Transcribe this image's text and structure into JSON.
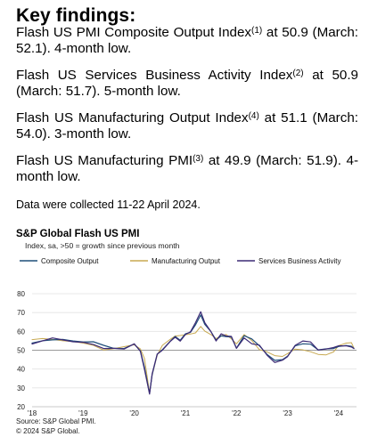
{
  "findings": {
    "heading": "Key findings:",
    "items": [
      {
        "pre": "Flash US PMI Composite Output Index",
        "sup": "(1)",
        "post": " at 50.9 (March: 52.1). 4-month low."
      },
      {
        "pre": "Flash US Services Business Activity Index",
        "sup": "(2)",
        "post": " at 50.9 (March: 51.7). 5-month low."
      },
      {
        "pre": "Flash US Manufacturing Output Index",
        "sup": "(4)",
        "post": " at 51.1 (March: 54.0). 3-month low."
      },
      {
        "pre": "Flash US Manufacturing PMI",
        "sup": "(3)",
        "post": " at 49.9 (March: 51.9). 4-month low."
      }
    ],
    "collected": "Data were collected 11-22 April 2024."
  },
  "chart_data": {
    "type": "line",
    "title": "S&P Global Flash US PMI",
    "subtitle": "Index, sa, >50 = growth since previous month",
    "source": "Source: S&P Global PMI.",
    "copyright": "© 2024 S&P Global.",
    "ylim": [
      20,
      80
    ],
    "yticks": [
      20,
      30,
      40,
      50,
      60,
      70,
      80
    ],
    "xlim": [
      2018.0,
      2024.35
    ],
    "xticks": [
      {
        "x": 2018.0,
        "label": "'18"
      },
      {
        "x": 2019.0,
        "label": "'19"
      },
      {
        "x": 2020.0,
        "label": "'20"
      },
      {
        "x": 2021.0,
        "label": "'21"
      },
      {
        "x": 2022.0,
        "label": "'22"
      },
      {
        "x": 2023.0,
        "label": "'23"
      },
      {
        "x": 2024.0,
        "label": "'24"
      }
    ],
    "reference_line": 50,
    "grid": "horizontal",
    "legend_position": "top",
    "series": [
      {
        "name": "Composite Output",
        "color": "#1f4e79",
        "width": 1.2,
        "points": [
          [
            2018.0,
            53.8
          ],
          [
            2018.2,
            55.0
          ],
          [
            2018.4,
            55.5
          ],
          [
            2018.6,
            55.7
          ],
          [
            2018.8,
            54.9
          ],
          [
            2019.0,
            54.4
          ],
          [
            2019.2,
            54.5
          ],
          [
            2019.4,
            52.6
          ],
          [
            2019.6,
            51.0
          ],
          [
            2019.8,
            50.9
          ],
          [
            2020.0,
            53.3
          ],
          [
            2020.12,
            49.6
          ],
          [
            2020.2,
            40.9
          ],
          [
            2020.3,
            27.0
          ],
          [
            2020.35,
            37.0
          ],
          [
            2020.45,
            47.9
          ],
          [
            2020.55,
            50.3
          ],
          [
            2020.7,
            54.7
          ],
          [
            2020.8,
            57.3
          ],
          [
            2020.9,
            55.3
          ],
          [
            2021.0,
            58.7
          ],
          [
            2021.1,
            59.5
          ],
          [
            2021.2,
            63.5
          ],
          [
            2021.3,
            68.7
          ],
          [
            2021.38,
            63.7
          ],
          [
            2021.5,
            59.9
          ],
          [
            2021.6,
            55.4
          ],
          [
            2021.7,
            57.6
          ],
          [
            2021.8,
            57.2
          ],
          [
            2021.9,
            57.0
          ],
          [
            2022.0,
            51.1
          ],
          [
            2022.15,
            57.7
          ],
          [
            2022.3,
            56.0
          ],
          [
            2022.45,
            52.3
          ],
          [
            2022.6,
            47.7
          ],
          [
            2022.75,
            44.6
          ],
          [
            2022.9,
            45.0
          ],
          [
            2023.0,
            46.8
          ],
          [
            2023.15,
            52.3
          ],
          [
            2023.3,
            53.4
          ],
          [
            2023.45,
            53.2
          ],
          [
            2023.6,
            50.2
          ],
          [
            2023.75,
            50.7
          ],
          [
            2023.9,
            50.9
          ],
          [
            2024.0,
            52.0
          ],
          [
            2024.15,
            52.5
          ],
          [
            2024.25,
            52.1
          ],
          [
            2024.3,
            50.9
          ]
        ]
      },
      {
        "name": "Manufacturing Output",
        "color": "#c8a951",
        "width": 1.0,
        "points": [
          [
            2018.0,
            55.6
          ],
          [
            2018.2,
            56.2
          ],
          [
            2018.4,
            55.7
          ],
          [
            2018.6,
            55.0
          ],
          [
            2018.8,
            54.6
          ],
          [
            2019.0,
            53.8
          ],
          [
            2019.2,
            52.6
          ],
          [
            2019.4,
            50.1
          ],
          [
            2019.6,
            50.8
          ],
          [
            2019.8,
            51.9
          ],
          [
            2020.0,
            52.9
          ],
          [
            2020.12,
            50.7
          ],
          [
            2020.2,
            45.6
          ],
          [
            2020.3,
            27.4
          ],
          [
            2020.35,
            36.8
          ],
          [
            2020.45,
            47.4
          ],
          [
            2020.55,
            52.6
          ],
          [
            2020.7,
            55.7
          ],
          [
            2020.8,
            57.5
          ],
          [
            2020.9,
            57.8
          ],
          [
            2021.0,
            58.2
          ],
          [
            2021.1,
            58.6
          ],
          [
            2021.2,
            59.2
          ],
          [
            2021.3,
            62.6
          ],
          [
            2021.38,
            60.1
          ],
          [
            2021.5,
            58.3
          ],
          [
            2021.6,
            56.2
          ],
          [
            2021.7,
            57.6
          ],
          [
            2021.8,
            58.3
          ],
          [
            2021.9,
            56.0
          ],
          [
            2022.0,
            53.4
          ],
          [
            2022.15,
            58.3
          ],
          [
            2022.3,
            55.1
          ],
          [
            2022.45,
            50.3
          ],
          [
            2022.6,
            49.1
          ],
          [
            2022.75,
            47.1
          ],
          [
            2022.9,
            46.7
          ],
          [
            2023.0,
            48.2
          ],
          [
            2023.15,
            50.6
          ],
          [
            2023.3,
            50.2
          ],
          [
            2023.45,
            49.2
          ],
          [
            2023.6,
            47.8
          ],
          [
            2023.75,
            47.5
          ],
          [
            2023.9,
            49.1
          ],
          [
            2024.0,
            52.4
          ],
          [
            2024.15,
            53.8
          ],
          [
            2024.25,
            54.0
          ],
          [
            2024.3,
            51.1
          ]
        ]
      },
      {
        "name": "Services Business Activity",
        "color": "#3c2a75",
        "width": 1.2,
        "points": [
          [
            2018.0,
            53.3
          ],
          [
            2018.2,
            54.9
          ],
          [
            2018.4,
            56.5
          ],
          [
            2018.6,
            55.5
          ],
          [
            2018.8,
            54.5
          ],
          [
            2019.0,
            54.2
          ],
          [
            2019.2,
            53.0
          ],
          [
            2019.4,
            50.9
          ],
          [
            2019.6,
            51.0
          ],
          [
            2019.8,
            50.6
          ],
          [
            2020.0,
            53.4
          ],
          [
            2020.12,
            49.4
          ],
          [
            2020.2,
            39.8
          ],
          [
            2020.3,
            26.7
          ],
          [
            2020.35,
            37.5
          ],
          [
            2020.45,
            47.9
          ],
          [
            2020.55,
            50.0
          ],
          [
            2020.7,
            54.6
          ],
          [
            2020.8,
            56.9
          ],
          [
            2020.9,
            54.8
          ],
          [
            2021.0,
            58.3
          ],
          [
            2021.1,
            59.8
          ],
          [
            2021.2,
            64.7
          ],
          [
            2021.3,
            70.4
          ],
          [
            2021.38,
            64.6
          ],
          [
            2021.5,
            59.9
          ],
          [
            2021.6,
            54.9
          ],
          [
            2021.7,
            58.7
          ],
          [
            2021.8,
            57.5
          ],
          [
            2021.9,
            57.3
          ],
          [
            2022.0,
            51.0
          ],
          [
            2022.15,
            56.5
          ],
          [
            2022.3,
            53.4
          ],
          [
            2022.45,
            52.7
          ],
          [
            2022.6,
            47.3
          ],
          [
            2022.75,
            43.5
          ],
          [
            2022.9,
            44.7
          ],
          [
            2023.0,
            46.6
          ],
          [
            2023.15,
            52.6
          ],
          [
            2023.3,
            54.9
          ],
          [
            2023.45,
            54.4
          ],
          [
            2023.6,
            50.1
          ],
          [
            2023.75,
            50.6
          ],
          [
            2023.9,
            51.4
          ],
          [
            2024.0,
            52.3
          ],
          [
            2024.15,
            52.3
          ],
          [
            2024.25,
            51.7
          ],
          [
            2024.3,
            50.9
          ]
        ]
      }
    ]
  }
}
